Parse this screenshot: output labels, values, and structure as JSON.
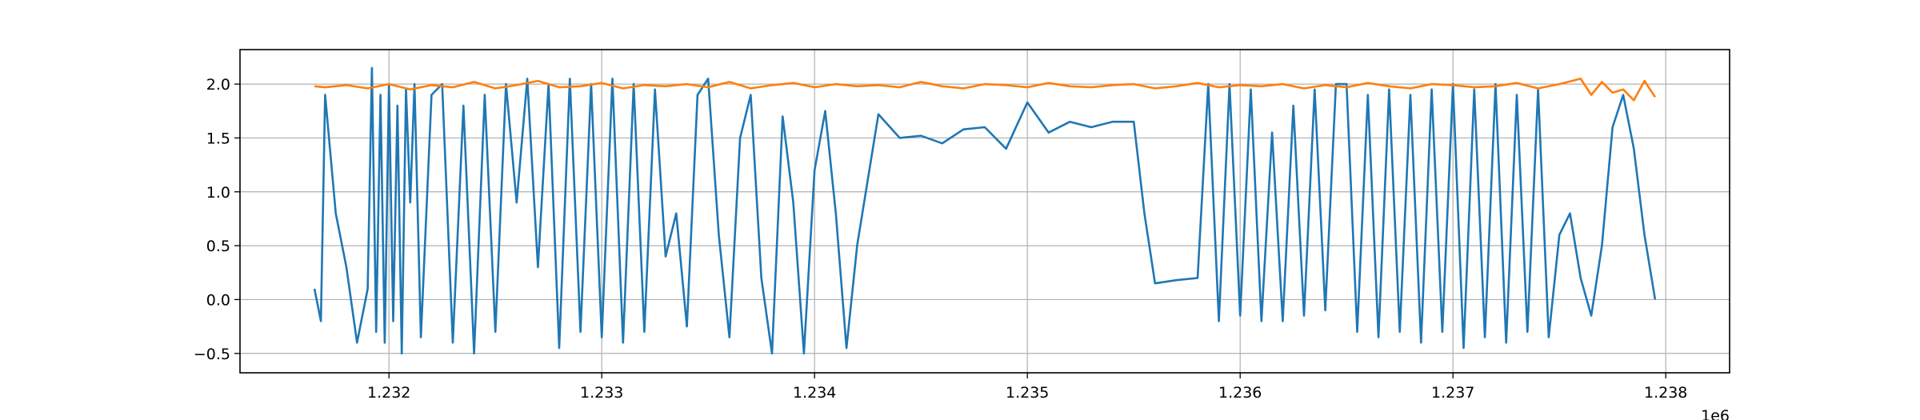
{
  "chart_data": {
    "type": "line",
    "title": "",
    "xlabel": "",
    "ylabel": "",
    "x_offset_label": "1e6",
    "xlim": [
      1.2313,
      1.2383
    ],
    "ylim": [
      -0.68,
      2.32
    ],
    "x_ticks": [
      1.232,
      1.233,
      1.234,
      1.235,
      1.236,
      1.237,
      1.238
    ],
    "x_tick_labels": [
      "1.232",
      "1.233",
      "1.234",
      "1.235",
      "1.236",
      "1.237",
      "1.238"
    ],
    "y_ticks": [
      -0.5,
      0.0,
      0.5,
      1.0,
      1.5,
      2.0
    ],
    "y_tick_labels": [
      "−0.5",
      "0.0",
      "0.5",
      "1.0",
      "1.5",
      "2.0"
    ],
    "grid": true,
    "legend": "none",
    "series": [
      {
        "color": "#1f77b4",
        "x": [
          1.23165,
          1.23168,
          1.2317,
          1.23175,
          1.2318,
          1.23185,
          1.2319,
          1.23192,
          1.23194,
          1.23196,
          1.23198,
          1.232,
          1.23202,
          1.23204,
          1.23206,
          1.23208,
          1.2321,
          1.23212,
          1.23215,
          1.2322,
          1.23225,
          1.2323,
          1.23235,
          1.2324,
          1.23245,
          1.2325,
          1.23255,
          1.2326,
          1.23265,
          1.2327,
          1.23275,
          1.2328,
          1.23285,
          1.2329,
          1.23295,
          1.233,
          1.23305,
          1.2331,
          1.23315,
          1.2332,
          1.23325,
          1.2333,
          1.23335,
          1.2334,
          1.23345,
          1.2335,
          1.23355,
          1.2336,
          1.23365,
          1.2337,
          1.23375,
          1.2338,
          1.23385,
          1.2339,
          1.23395,
          1.234,
          1.23405,
          1.2341,
          1.23415,
          1.2342,
          1.2343,
          1.2344,
          1.2345,
          1.2346,
          1.2347,
          1.2348,
          1.2349,
          1.235,
          1.2351,
          1.2352,
          1.2353,
          1.2354,
          1.2355,
          1.23555,
          1.2356,
          1.2357,
          1.2358,
          1.23585,
          1.2359,
          1.23595,
          1.236,
          1.23605,
          1.2361,
          1.23615,
          1.2362,
          1.23625,
          1.2363,
          1.23635,
          1.2364,
          1.23645,
          1.2365,
          1.23655,
          1.2366,
          1.23665,
          1.2367,
          1.23675,
          1.2368,
          1.23685,
          1.2369,
          1.23695,
          1.237,
          1.23705,
          1.2371,
          1.23715,
          1.2372,
          1.23725,
          1.2373,
          1.23735,
          1.2374,
          1.23745,
          1.2375,
          1.23755,
          1.2376,
          1.23765,
          1.2377,
          1.23775,
          1.2378,
          1.23785,
          1.2379,
          1.23795
        ],
        "y": [
          0.1,
          -0.2,
          1.9,
          0.8,
          0.3,
          -0.4,
          0.1,
          2.15,
          -0.3,
          1.9,
          -0.4,
          2.0,
          -0.2,
          1.8,
          -0.5,
          1.95,
          0.9,
          2.0,
          -0.35,
          1.9,
          2.0,
          -0.4,
          1.8,
          -0.5,
          1.9,
          -0.3,
          2.0,
          0.9,
          2.05,
          0.3,
          2.0,
          -0.45,
          2.05,
          -0.3,
          2.0,
          -0.35,
          2.05,
          -0.4,
          2.0,
          -0.3,
          1.95,
          0.4,
          0.8,
          -0.25,
          1.9,
          2.05,
          0.6,
          -0.35,
          1.5,
          1.9,
          0.2,
          -0.5,
          1.7,
          0.9,
          -0.5,
          1.2,
          1.75,
          0.8,
          -0.45,
          0.5,
          1.72,
          1.5,
          1.52,
          1.45,
          1.58,
          1.6,
          1.4,
          1.83,
          1.55,
          1.65,
          1.6,
          1.65,
          1.65,
          0.8,
          0.15,
          0.18,
          0.2,
          2.0,
          -0.2,
          2.0,
          -0.15,
          1.95,
          -0.2,
          1.55,
          -0.2,
          1.8,
          -0.15,
          1.95,
          -0.1,
          2.0,
          2.0,
          -0.3,
          1.9,
          -0.35,
          1.95,
          -0.3,
          1.9,
          -0.4,
          1.95,
          -0.3,
          2.0,
          -0.45,
          1.95,
          -0.35,
          2.0,
          -0.4,
          1.9,
          -0.3,
          1.95,
          -0.35,
          0.6,
          0.8,
          0.2,
          -0.15,
          0.5,
          1.6,
          1.9,
          1.4,
          0.6,
          0.0
        ]
      },
      {
        "color": "#ff7f0e",
        "x": [
          1.23165,
          1.2317,
          1.2318,
          1.2319,
          1.232,
          1.2321,
          1.2322,
          1.2323,
          1.2324,
          1.2325,
          1.2326,
          1.2327,
          1.2328,
          1.2329,
          1.233,
          1.2331,
          1.2332,
          1.2333,
          1.2334,
          1.2335,
          1.2336,
          1.2337,
          1.2338,
          1.2339,
          1.234,
          1.2341,
          1.2342,
          1.2343,
          1.2344,
          1.2345,
          1.2346,
          1.2347,
          1.2348,
          1.2349,
          1.235,
          1.2351,
          1.2352,
          1.2353,
          1.2354,
          1.2355,
          1.2356,
          1.2357,
          1.2358,
          1.2359,
          1.236,
          1.2361,
          1.2362,
          1.2363,
          1.2364,
          1.2365,
          1.2366,
          1.2367,
          1.2368,
          1.2369,
          1.237,
          1.2371,
          1.2372,
          1.2373,
          1.2374,
          1.2375,
          1.2376,
          1.23765,
          1.2377,
          1.23775,
          1.2378,
          1.23785,
          1.2379,
          1.23795
        ],
        "y": [
          1.98,
          1.97,
          1.99,
          1.96,
          2.0,
          1.95,
          1.99,
          1.97,
          2.02,
          1.96,
          1.99,
          2.03,
          1.97,
          1.98,
          2.01,
          1.96,
          1.99,
          1.98,
          2.0,
          1.97,
          2.02,
          1.96,
          1.99,
          2.01,
          1.97,
          2.0,
          1.98,
          1.99,
          1.97,
          2.02,
          1.98,
          1.96,
          2.0,
          1.99,
          1.97,
          2.01,
          1.98,
          1.97,
          1.99,
          2.0,
          1.96,
          1.98,
          2.01,
          1.97,
          1.99,
          1.98,
          2.0,
          1.96,
          1.99,
          1.97,
          2.01,
          1.98,
          1.96,
          2.0,
          1.99,
          1.97,
          1.98,
          2.01,
          1.96,
          2.0,
          2.05,
          1.9,
          2.02,
          1.92,
          1.95,
          1.85,
          2.03,
          1.88
        ]
      }
    ]
  }
}
